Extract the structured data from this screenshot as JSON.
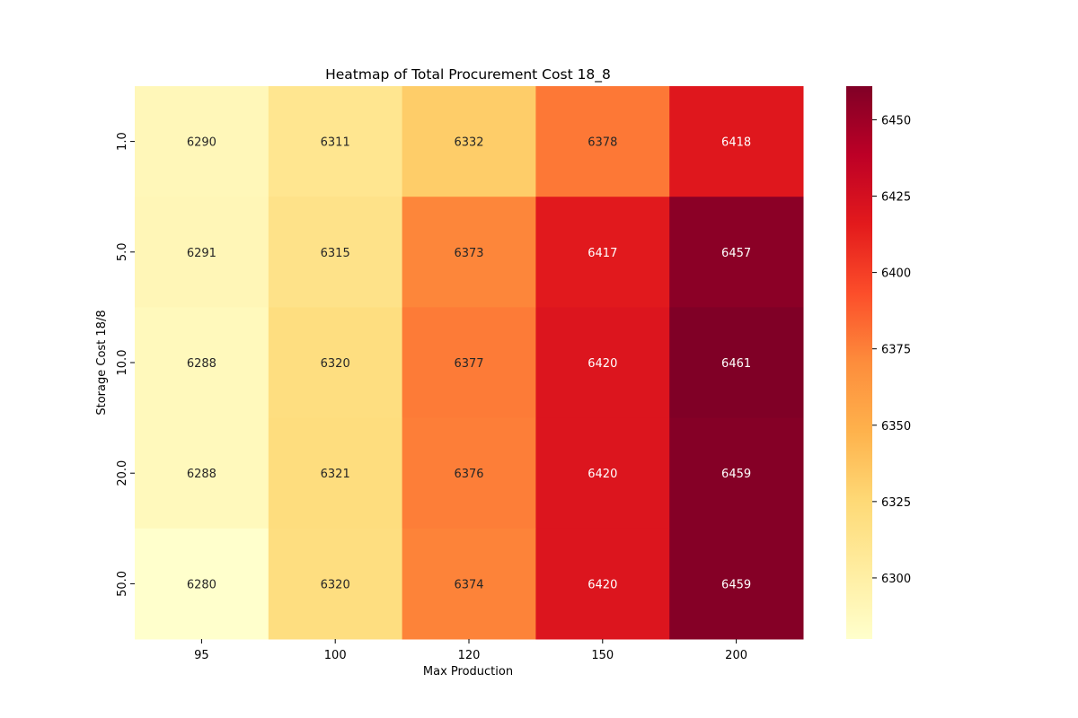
{
  "chart_data": {
    "type": "heatmap",
    "title": "Heatmap of Total Procurement Cost 18_8",
    "xlabel": "Max Production",
    "ylabel": "Storage Cost 18/8",
    "x_categories": [
      "95",
      "100",
      "120",
      "150",
      "200"
    ],
    "y_categories": [
      "1.0",
      "5.0",
      "10.0",
      "20.0",
      "50.0"
    ],
    "values": [
      [
        6290,
        6311,
        6332,
        6378,
        6418
      ],
      [
        6291,
        6315,
        6373,
        6417,
        6457
      ],
      [
        6288,
        6320,
        6377,
        6420,
        6461
      ],
      [
        6288,
        6321,
        6376,
        6420,
        6459
      ],
      [
        6280,
        6320,
        6374,
        6420,
        6459
      ]
    ],
    "colormap": "YlOrRd",
    "color_range": [
      6280,
      6461
    ],
    "colorbar_ticks": [
      "6300",
      "6325",
      "6350",
      "6375",
      "6400",
      "6425",
      "6450"
    ],
    "colorbar_position": "right",
    "annotated": true,
    "grid": false
  }
}
